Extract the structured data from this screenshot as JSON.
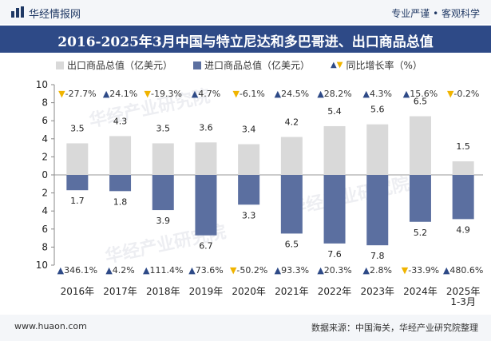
{
  "header": {
    "brand": "华经情报网",
    "slogan": "专业严谨 • 客观科学"
  },
  "footer": {
    "website": "www.huaon.com",
    "source": "数据来源：中国海关，华经产业研究院整理"
  },
  "watermark": "华经产业研究院",
  "colors": {
    "export": "#d9d9d9",
    "import": "#5b6fa0",
    "up": "#2e4a87",
    "down": "#f0b400",
    "title_bg": "#2e4a87"
  },
  "chart_data": {
    "type": "bar",
    "title": "2016-2025年3月中国与特立尼达和多巴哥进、出口商品总值",
    "categories": [
      "2016年",
      "2017年",
      "2018年",
      "2019年",
      "2020年",
      "2021年",
      "2022年",
      "2023年",
      "2024年",
      "2025年\n1-3月"
    ],
    "series": [
      {
        "name": "出口商品总值（亿美元）",
        "values": [
          3.5,
          4.3,
          3.5,
          3.6,
          3.4,
          4.2,
          5.4,
          5.6,
          6.5,
          1.5
        ],
        "growth": [
          "-27.7%",
          "24.1%",
          "-19.3%",
          "4.7%",
          "-6.1%",
          "24.5%",
          "28.2%",
          "4.3%",
          "15.6%",
          "-0.2%"
        ]
      },
      {
        "name": "进口商品总值（亿美元）",
        "values": [
          1.7,
          1.8,
          3.9,
          6.7,
          3.3,
          6.5,
          7.6,
          7.8,
          5.2,
          4.9
        ],
        "growth": [
          "346.1%",
          "4.2%",
          "111.4%",
          "73.6%",
          "-50.2%",
          "93.3%",
          "20.3%",
          "2.8%",
          "-33.9%",
          "480.6%"
        ]
      }
    ],
    "growth_legend": "同比增长率（%）",
    "y_ticks": [
      "10",
      "8",
      "6",
      "4",
      "2",
      "0",
      "2",
      "4",
      "6",
      "8",
      "10"
    ],
    "ylim": [
      -10,
      10
    ]
  }
}
